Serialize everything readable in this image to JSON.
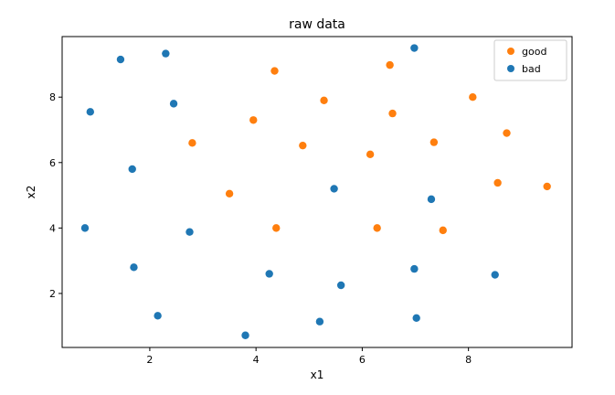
{
  "chart_data": {
    "type": "scatter",
    "title": "raw data",
    "xlabel": "x1",
    "ylabel": "x2",
    "xlim": [
      0.35,
      9.95
    ],
    "ylim": [
      0.35,
      9.85
    ],
    "xticks": [
      2,
      4,
      6,
      8
    ],
    "yticks": [
      2,
      4,
      6,
      8
    ],
    "legend_position": "top-right",
    "series": [
      {
        "name": "good",
        "color": "#ff7f0e",
        "points": [
          [
            2.8,
            6.6
          ],
          [
            3.5,
            5.05
          ],
          [
            3.95,
            7.3
          ],
          [
            4.35,
            8.8
          ],
          [
            4.38,
            4.0
          ],
          [
            4.88,
            6.52
          ],
          [
            5.28,
            7.9
          ],
          [
            6.15,
            6.25
          ],
          [
            6.28,
            4.0
          ],
          [
            6.52,
            8.98
          ],
          [
            6.57,
            7.5
          ],
          [
            7.35,
            6.62
          ],
          [
            7.52,
            3.93
          ],
          [
            8.08,
            8.0
          ],
          [
            8.55,
            5.38
          ],
          [
            8.72,
            6.9
          ],
          [
            9.48,
            5.27
          ]
        ]
      },
      {
        "name": "bad",
        "color": "#1f77b4",
        "points": [
          [
            0.78,
            4.0
          ],
          [
            0.88,
            7.55
          ],
          [
            1.45,
            9.15
          ],
          [
            1.67,
            5.8
          ],
          [
            1.7,
            2.8
          ],
          [
            2.15,
            1.32
          ],
          [
            2.3,
            9.33
          ],
          [
            2.45,
            7.8
          ],
          [
            2.75,
            3.88
          ],
          [
            3.8,
            0.72
          ],
          [
            4.25,
            2.6
          ],
          [
            5.2,
            1.14
          ],
          [
            5.47,
            5.2
          ],
          [
            5.6,
            2.25
          ],
          [
            6.98,
            9.5
          ],
          [
            6.98,
            2.75
          ],
          [
            7.02,
            1.25
          ],
          [
            7.3,
            4.88
          ],
          [
            8.5,
            2.57
          ]
        ]
      }
    ]
  }
}
